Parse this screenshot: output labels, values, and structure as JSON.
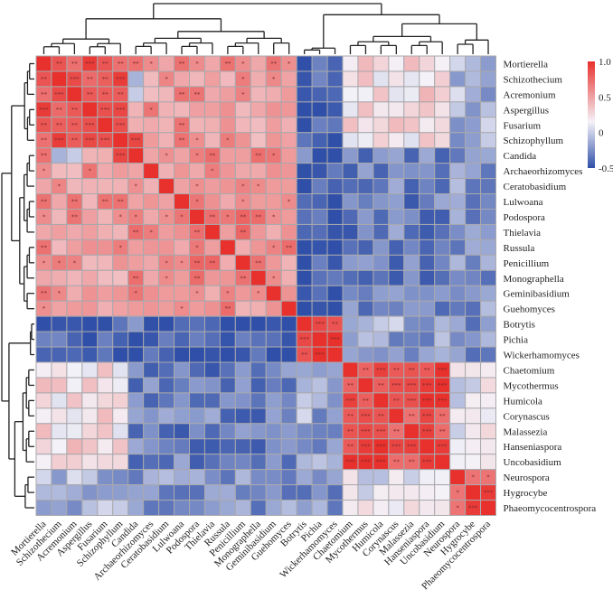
{
  "chart_data": {
    "type": "heatmap",
    "title": "",
    "labels": [
      "Mortierella",
      "Schizothecium",
      "Acremonium",
      "Aspergillus",
      "Fusarium",
      "Schizophyllum",
      "Candida",
      "Archaeorhizomyces",
      "Ceratobasidium",
      "Lulwoana",
      "Podospora",
      "Thielavia",
      "Russula",
      "Penicillium",
      "Monographella",
      "Geminibasidium",
      "Guehomyces",
      "Botrytis",
      "Pichia",
      "Wickerhamomyces",
      "Chaetomium",
      "Mycothermus",
      "Humicola",
      "Corynascus",
      "Malassezia",
      "Hanseniaspora",
      "Uncobasidium",
      "Neurospora",
      "Hygrocybe",
      "Phaeomycocentrospora"
    ],
    "groups": {
      "A": [
        0,
        1,
        2,
        3,
        4,
        5
      ],
      "B": [
        6,
        7,
        8,
        9,
        10,
        11,
        12,
        13,
        14,
        15,
        16
      ],
      "C": [
        17,
        18,
        19
      ],
      "D": [
        20,
        21,
        22,
        23,
        24,
        25,
        26
      ],
      "E": [
        27,
        28,
        29
      ]
    },
    "color_scale": {
      "min": -0.5,
      "max": 1.0,
      "low_color": "#2f4fa8",
      "mid_color": "#f4f2f8",
      "high_color": "#e8302c",
      "mid_value": 0.15
    },
    "legend": {
      "ticks": [
        "1.0",
        "0.5",
        "0",
        "-0.5"
      ],
      "placement": "right"
    },
    "dendrogram": {
      "rows": "left",
      "columns": "top"
    },
    "values_note": "Symmetric correlation matrix, values estimated from cell colors",
    "significance_levels": [
      "*",
      "**",
      "***"
    ]
  }
}
